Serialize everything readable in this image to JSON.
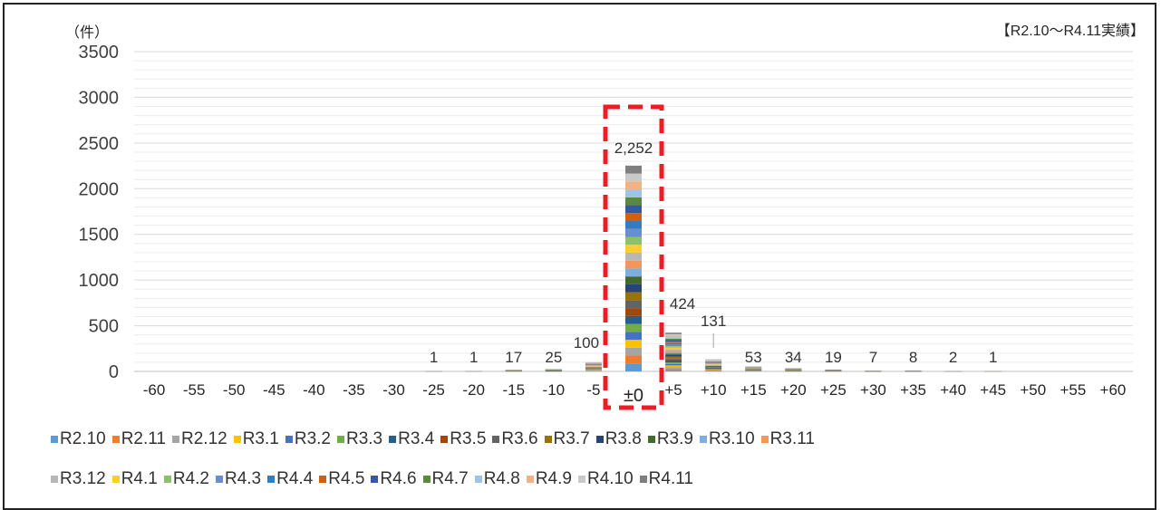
{
  "chart_data": {
    "type": "bar",
    "stacked": true,
    "ylabel": "（件）",
    "annotation": "【R2.10〜R4.11実績】",
    "ylim": [
      0,
      3500
    ],
    "yticks": [
      0,
      500,
      1000,
      1500,
      2000,
      2500,
      3000,
      3500
    ],
    "grid": true,
    "legend_position": "bottom",
    "categories": [
      "-60",
      "-55",
      "-50",
      "-45",
      "-40",
      "-35",
      "-30",
      "-25",
      "-20",
      "-15",
      "-10",
      "-5",
      "±0",
      "+5",
      "+10",
      "+15",
      "+20",
      "+25",
      "+30",
      "+35",
      "+40",
      "+45",
      "+50",
      "+55",
      "+60"
    ],
    "totals": [
      null,
      null,
      null,
      null,
      null,
      null,
      null,
      1,
      1,
      17,
      25,
      100,
      2252,
      424,
      131,
      53,
      34,
      19,
      7,
      8,
      2,
      1,
      null,
      null,
      null
    ],
    "total_labels": [
      "",
      "",
      "",
      "",
      "",
      "",
      "",
      "1",
      "1",
      "17",
      "25",
      "100",
      "2,252",
      "424",
      "131",
      "53",
      "34",
      "19",
      "7",
      "8",
      "2",
      "1",
      "",
      "",
      ""
    ],
    "highlight_category": "±0",
    "series": [
      {
        "name": "R2.10",
        "color": "#5b9bd5"
      },
      {
        "name": "R2.11",
        "color": "#ed7d31"
      },
      {
        "name": "R2.12",
        "color": "#a5a5a5"
      },
      {
        "name": "R3.1",
        "color": "#ffc000"
      },
      {
        "name": "R3.2",
        "color": "#4472c4"
      },
      {
        "name": "R3.3",
        "color": "#70ad47"
      },
      {
        "name": "R3.4",
        "color": "#255e91"
      },
      {
        "name": "R3.5",
        "color": "#9e480e"
      },
      {
        "name": "R3.6",
        "color": "#636363"
      },
      {
        "name": "R3.7",
        "color": "#997300"
      },
      {
        "name": "R3.8",
        "color": "#264478"
      },
      {
        "name": "R3.9",
        "color": "#43682b"
      },
      {
        "name": "R3.10",
        "color": "#7cafdd"
      },
      {
        "name": "R3.11",
        "color": "#f1975a"
      },
      {
        "name": "R3.12",
        "color": "#b7b7b7"
      },
      {
        "name": "R4.1",
        "color": "#ffcd33"
      },
      {
        "name": "R4.2",
        "color": "#8cc168"
      },
      {
        "name": "R4.3",
        "color": "#698ed0"
      },
      {
        "name": "R4.4",
        "color": "#327dc2"
      },
      {
        "name": "R4.5",
        "color": "#d26012"
      },
      {
        "name": "R4.6",
        "color": "#335aa1"
      },
      {
        "name": "R4.7",
        "color": "#5a8a39"
      },
      {
        "name": "R4.8",
        "color": "#9dc3e6"
      },
      {
        "name": "R4.9",
        "color": "#f4b183"
      },
      {
        "name": "R4.10",
        "color": "#c9c9c9"
      },
      {
        "name": "R4.11",
        "color": "#7f7f7f"
      }
    ]
  }
}
